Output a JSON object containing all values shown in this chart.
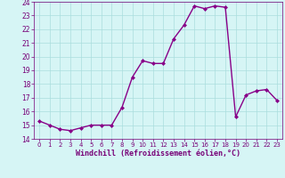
{
  "x": [
    0,
    1,
    2,
    3,
    4,
    5,
    6,
    7,
    8,
    9,
    10,
    11,
    12,
    13,
    14,
    15,
    16,
    17,
    18,
    19,
    20,
    21,
    22,
    23
  ],
  "y": [
    15.3,
    15.0,
    14.7,
    14.6,
    14.8,
    15.0,
    15.0,
    15.0,
    16.3,
    18.5,
    19.7,
    19.5,
    19.5,
    21.3,
    22.3,
    23.7,
    23.5,
    23.7,
    23.6,
    15.6,
    17.2,
    17.5,
    17.6,
    16.8
  ],
  "ylim": [
    14,
    24
  ],
  "yticks": [
    14,
    15,
    16,
    17,
    18,
    19,
    20,
    21,
    22,
    23,
    24
  ],
  "xticks": [
    0,
    1,
    2,
    3,
    4,
    5,
    6,
    7,
    8,
    9,
    10,
    11,
    12,
    13,
    14,
    15,
    16,
    17,
    18,
    19,
    20,
    21,
    22,
    23
  ],
  "xlabel": "Windchill (Refroidissement éolien,°C)",
  "line_color": "#880088",
  "marker_color": "#880088",
  "bg_color": "#d6f5f5",
  "grid_color": "#aadddd",
  "font_color": "#770077",
  "marker": "D",
  "marker_size": 2.0,
  "line_width": 1.0
}
